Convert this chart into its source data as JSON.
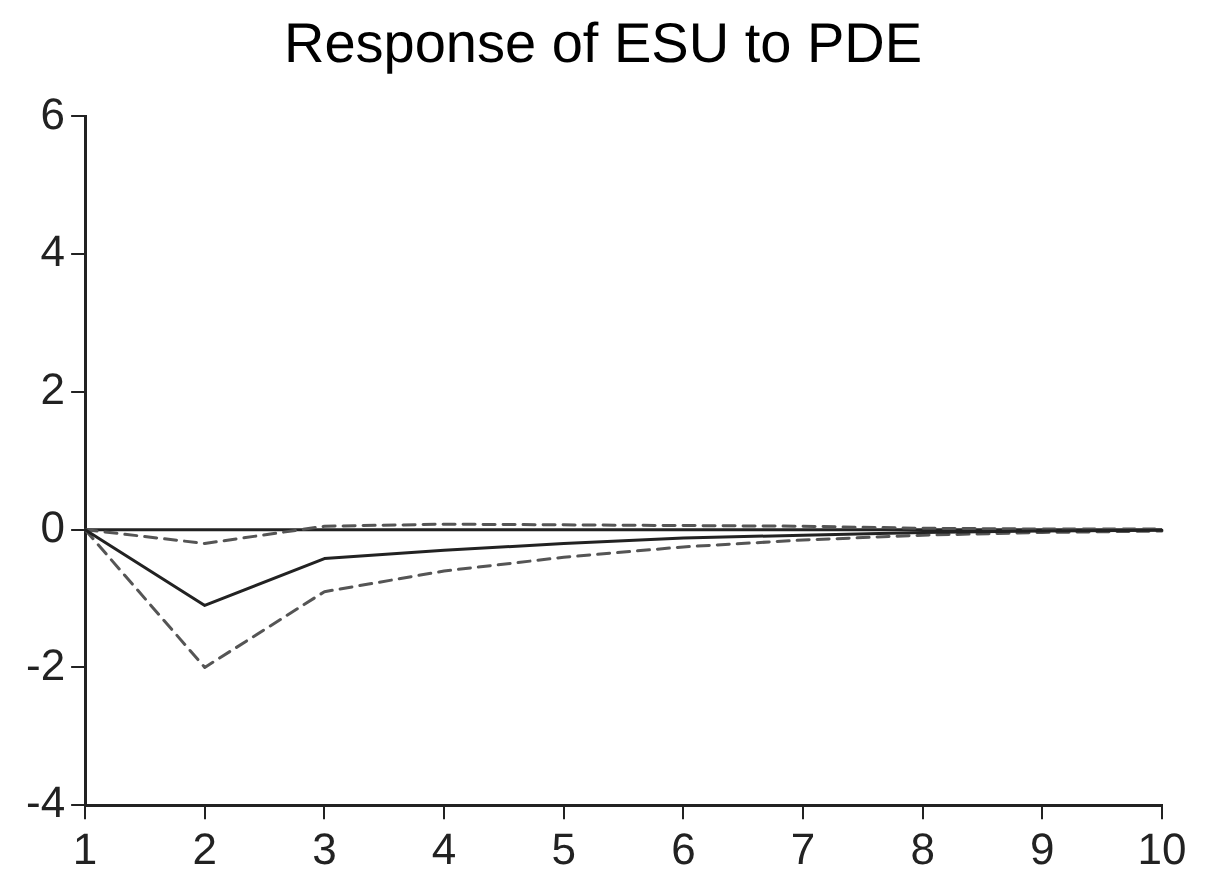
{
  "chart_data": {
    "type": "line",
    "title": "Response of ESU to PDE",
    "categories": [
      "1",
      "2",
      "3",
      "4",
      "5",
      "6",
      "7",
      "8",
      "9",
      "10"
    ],
    "series": [
      {
        "color": "#222222",
        "line_style": "solid",
        "values": [
          0,
          -1.1,
          -0.42,
          -0.3,
          -0.2,
          -0.12,
          -0.08,
          -0.04,
          -0.02,
          -0.01
        ]
      },
      {
        "color": "#555555",
        "line_style": "dashed",
        "values": [
          0,
          -2.0,
          -0.9,
          -0.6,
          -0.4,
          -0.25,
          -0.15,
          -0.08,
          -0.04,
          -0.02
        ]
      },
      {
        "color": "#555555",
        "line_style": "dashed",
        "values": [
          0,
          -0.2,
          0.05,
          0.08,
          0.07,
          0.06,
          0.05,
          0.02,
          0.01,
          0.01
        ]
      }
    ],
    "ylim": [
      -4,
      6
    ],
    "yticks": [
      -4,
      -2,
      0,
      2,
      4,
      6
    ],
    "grid": false,
    "legend": false,
    "marker": "none",
    "ref_lines": [
      {
        "axis": "y",
        "value": 0,
        "color": "#222222"
      }
    ]
  }
}
